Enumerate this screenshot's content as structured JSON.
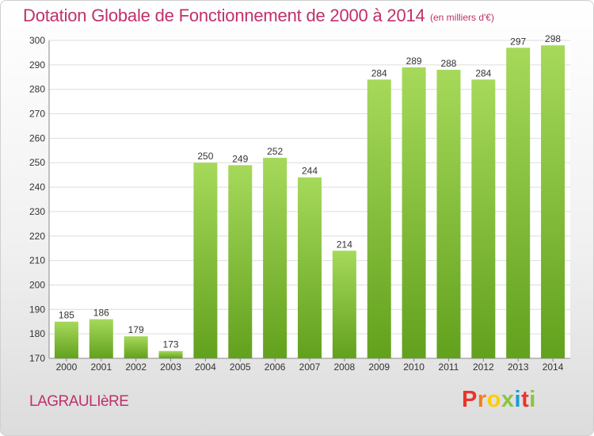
{
  "header": {
    "title": "Dotation Globale de Fonctionnement de 2000 à 2014",
    "unit": "(en milliers d'€)"
  },
  "footer": {
    "commune": "LAGRAULIèRE",
    "brand": "Proxiti",
    "brand_colors": [
      "#e8352a",
      "#f07f1e",
      "#ffcc00",
      "#8ac43f",
      "#1a9ad6",
      "#e8352a",
      "#8ac43f"
    ]
  },
  "colors": {
    "bar_light": "#a6d95a",
    "bar_dark": "#62a11d",
    "accent": "#c0306a",
    "grid": "#dddddd",
    "axis_text": "#333333"
  },
  "chart_data": {
    "type": "bar",
    "categories": [
      "2000",
      "2001",
      "2002",
      "2003",
      "2004",
      "2005",
      "2006",
      "2007",
      "2008",
      "2009",
      "2010",
      "2011",
      "2012",
      "2013",
      "2014"
    ],
    "values": [
      185,
      186,
      179,
      173,
      250,
      249,
      252,
      244,
      214,
      284,
      289,
      288,
      284,
      297,
      298
    ],
    "ylim": [
      170,
      300
    ],
    "yticks": [
      170,
      180,
      190,
      200,
      210,
      220,
      230,
      240,
      250,
      260,
      270,
      280,
      290,
      300
    ],
    "grid": true,
    "legend": "none"
  }
}
